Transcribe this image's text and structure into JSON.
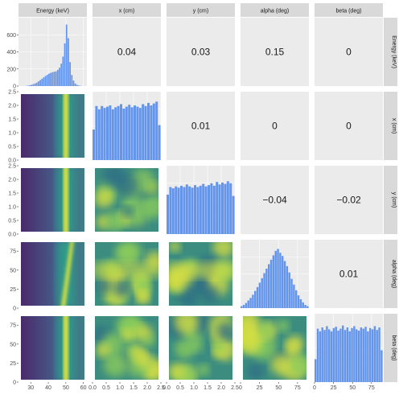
{
  "chart_data": {
    "type": "scatterplot-matrix",
    "variables": [
      "Energy (keV)",
      "x (cm)",
      "y (cm)",
      "alpha (deg)",
      "beta (deg)"
    ],
    "ranges": [
      [
        23,
        62
      ],
      [
        0,
        2.5
      ],
      [
        0,
        2.5
      ],
      [
        0,
        90
      ],
      [
        0,
        90
      ]
    ],
    "ticks": [
      [
        {
          "v": 30,
          "t": "30"
        },
        {
          "v": 40,
          "t": "40"
        },
        {
          "v": 50,
          "t": "50"
        },
        {
          "v": 60,
          "t": "60"
        }
      ],
      [
        {
          "v": 0,
          "t": "0.0"
        },
        {
          "v": 0.5,
          "t": "0.5"
        },
        {
          "v": 1,
          "t": "1.0"
        },
        {
          "v": 1.5,
          "t": "1.5"
        },
        {
          "v": 2,
          "t": "2.0"
        },
        {
          "v": 2.5,
          "t": "2.5"
        }
      ],
      [
        {
          "v": 0,
          "t": "0.0"
        },
        {
          "v": 0.5,
          "t": "0.5"
        },
        {
          "v": 1,
          "t": "1.0"
        },
        {
          "v": 1.5,
          "t": "1.5"
        },
        {
          "v": 2,
          "t": "2.0"
        },
        {
          "v": 2.5,
          "t": "2.5"
        }
      ],
      [
        {
          "v": 0,
          "t": "0"
        },
        {
          "v": 25,
          "t": "25"
        },
        {
          "v": 50,
          "t": "50"
        },
        {
          "v": 75,
          "t": "75"
        }
      ],
      [
        {
          "v": 0,
          "t": "0"
        },
        {
          "v": 25,
          "t": "25"
        },
        {
          "v": 50,
          "t": "50"
        },
        {
          "v": 75,
          "t": "75"
        }
      ]
    ],
    "diag_counts_axis": {
      "ylim": [
        0,
        800
      ],
      "ticks": [
        {
          "v": 0,
          "t": "0"
        },
        {
          "v": 200,
          "t": "200"
        },
        {
          "v": 400,
          "t": "400"
        },
        {
          "v": 600,
          "t": "600"
        }
      ]
    },
    "histograms": [
      {
        "variable": "Energy (keV)",
        "type": "bar",
        "bins": [
          [
            27.0,
            2
          ],
          [
            28.0,
            5
          ],
          [
            29.0,
            9
          ],
          [
            30.0,
            15
          ],
          [
            31.0,
            22
          ],
          [
            32.0,
            30
          ],
          [
            33.0,
            40
          ],
          [
            34.0,
            55
          ],
          [
            35.0,
            70
          ],
          [
            36.0,
            86
          ],
          [
            37.0,
            102
          ],
          [
            38.0,
            118
          ],
          [
            39.0,
            132
          ],
          [
            40.0,
            145
          ],
          [
            41.0,
            155
          ],
          [
            42.0,
            162
          ],
          [
            43.0,
            168
          ],
          [
            44.0,
            172
          ],
          [
            45.0,
            190
          ],
          [
            46.0,
            215
          ],
          [
            47.0,
            262
          ],
          [
            48.0,
            345
          ],
          [
            49.0,
            500
          ],
          [
            50.0,
            720
          ],
          [
            51.0,
            560
          ],
          [
            52.0,
            280
          ],
          [
            53.0,
            130
          ],
          [
            54.0,
            65
          ],
          [
            55.0,
            30
          ],
          [
            56.0,
            14
          ],
          [
            57.0,
            6
          ],
          [
            58.0,
            3
          ]
        ]
      },
      {
        "variable": "x (cm)",
        "type": "bar",
        "bins": [
          [
            0.0,
            0.48
          ],
          [
            0.1,
            0.85
          ],
          [
            0.2,
            0.8
          ],
          [
            0.3,
            0.85
          ],
          [
            0.4,
            0.82
          ],
          [
            0.5,
            0.84
          ],
          [
            0.6,
            0.86
          ],
          [
            0.7,
            0.8
          ],
          [
            0.8,
            0.83
          ],
          [
            0.9,
            0.85
          ],
          [
            1.0,
            0.88
          ],
          [
            1.1,
            0.81
          ],
          [
            1.2,
            0.84
          ],
          [
            1.3,
            0.87
          ],
          [
            1.4,
            0.83
          ],
          [
            1.5,
            0.86
          ],
          [
            1.6,
            0.84
          ],
          [
            1.7,
            0.82
          ],
          [
            1.8,
            0.88
          ],
          [
            1.9,
            0.85
          ],
          [
            2.0,
            0.9
          ],
          [
            2.1,
            0.86
          ],
          [
            2.2,
            0.89
          ],
          [
            2.3,
            0.92
          ],
          [
            2.4,
            0.55
          ]
        ]
      },
      {
        "variable": "y (cm)",
        "type": "bar",
        "bins": [
          [
            0.0,
            0.62
          ],
          [
            0.1,
            0.74
          ],
          [
            0.2,
            0.72
          ],
          [
            0.3,
            0.75
          ],
          [
            0.4,
            0.73
          ],
          [
            0.5,
            0.76
          ],
          [
            0.6,
            0.74
          ],
          [
            0.7,
            0.78
          ],
          [
            0.8,
            0.75
          ],
          [
            0.9,
            0.73
          ],
          [
            1.0,
            0.77
          ],
          [
            1.1,
            0.74
          ],
          [
            1.2,
            0.76
          ],
          [
            1.3,
            0.79
          ],
          [
            1.4,
            0.75
          ],
          [
            1.5,
            0.77
          ],
          [
            1.6,
            0.8
          ],
          [
            1.7,
            0.76
          ],
          [
            1.8,
            0.82
          ],
          [
            1.9,
            0.78
          ],
          [
            2.0,
            0.81
          ],
          [
            2.1,
            0.79
          ],
          [
            2.2,
            0.83
          ],
          [
            2.3,
            0.8
          ],
          [
            2.4,
            0.6
          ]
        ]
      },
      {
        "variable": "alpha (deg)",
        "type": "bar",
        "bins": [
          [
            0,
            0.03
          ],
          [
            3,
            0.05
          ],
          [
            6,
            0.08
          ],
          [
            9,
            0.12
          ],
          [
            12,
            0.16
          ],
          [
            15,
            0.21
          ],
          [
            18,
            0.27
          ],
          [
            21,
            0.33
          ],
          [
            24,
            0.4
          ],
          [
            27,
            0.47
          ],
          [
            30,
            0.55
          ],
          [
            33,
            0.62
          ],
          [
            36,
            0.69
          ],
          [
            39,
            0.76
          ],
          [
            42,
            0.83
          ],
          [
            45,
            0.9
          ],
          [
            48,
            0.93
          ],
          [
            51,
            0.87
          ],
          [
            54,
            0.82
          ],
          [
            57,
            0.74
          ],
          [
            60,
            0.66
          ],
          [
            63,
            0.56
          ],
          [
            66,
            0.46
          ],
          [
            69,
            0.37
          ],
          [
            72,
            0.28
          ],
          [
            75,
            0.2
          ],
          [
            78,
            0.14
          ],
          [
            81,
            0.09
          ],
          [
            84,
            0.05
          ],
          [
            87,
            0.03
          ]
        ]
      },
      {
        "variable": "beta (deg)",
        "type": "bar",
        "bins": [
          [
            0,
            0.36
          ],
          [
            3,
            0.84
          ],
          [
            6,
            0.8
          ],
          [
            9,
            0.86
          ],
          [
            12,
            0.82
          ],
          [
            15,
            0.88
          ],
          [
            18,
            0.83
          ],
          [
            21,
            0.8
          ],
          [
            24,
            0.85
          ],
          [
            27,
            0.87
          ],
          [
            30,
            0.81
          ],
          [
            33,
            0.84
          ],
          [
            36,
            0.89
          ],
          [
            39,
            0.82
          ],
          [
            42,
            0.86
          ],
          [
            45,
            0.8
          ],
          [
            48,
            0.85
          ],
          [
            51,
            0.88
          ],
          [
            54,
            0.83
          ],
          [
            57,
            0.81
          ],
          [
            60,
            0.86
          ],
          [
            63,
            0.84
          ],
          [
            66,
            0.87
          ],
          [
            69,
            0.8
          ],
          [
            72,
            0.85
          ],
          [
            75,
            0.83
          ],
          [
            78,
            0.88
          ],
          [
            81,
            0.82
          ],
          [
            84,
            0.86
          ],
          [
            87,
            0.5
          ]
        ]
      }
    ],
    "correlations": [
      {
        "row": 0,
        "col": 1,
        "text": "0.04"
      },
      {
        "row": 0,
        "col": 2,
        "text": "0.03"
      },
      {
        "row": 0,
        "col": 3,
        "text": "0.15"
      },
      {
        "row": 0,
        "col": 4,
        "text": "0"
      },
      {
        "row": 1,
        "col": 2,
        "text": "0.01"
      },
      {
        "row": 1,
        "col": 3,
        "text": "0"
      },
      {
        "row": 1,
        "col": 4,
        "text": "0"
      },
      {
        "row": 2,
        "col": 3,
        "text": "−0.04"
      },
      {
        "row": 2,
        "col": 4,
        "text": "−0.02"
      },
      {
        "row": 3,
        "col": 4,
        "text": "0.01"
      }
    ],
    "density_panels": "lower-triangle heatmaps (viridis), bright ridge near Energy = 50 keV",
    "colors": {
      "histogram": "#6495ed",
      "panel_bg": "#ebebeb",
      "strip_bg": "#d9d9d9",
      "grid": "#ffffff"
    }
  }
}
